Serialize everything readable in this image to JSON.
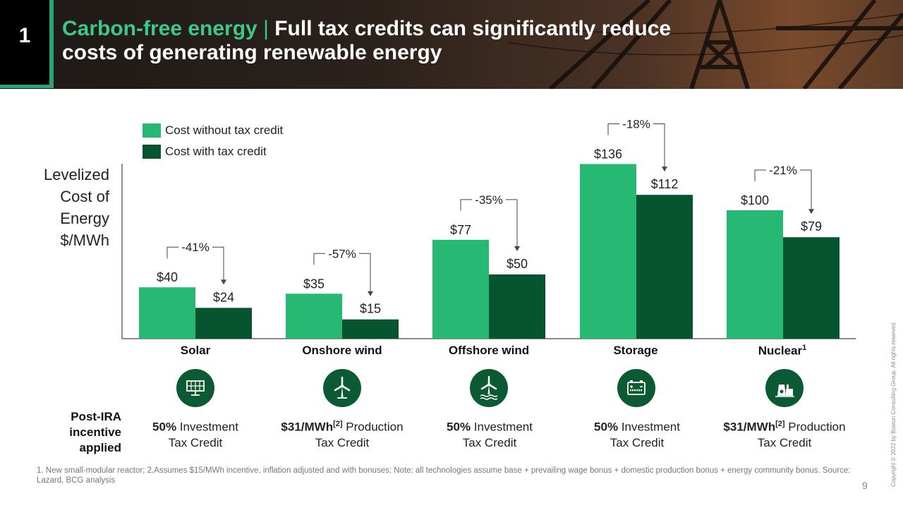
{
  "slide": {
    "number": "1",
    "title_accent": "Carbon-free energy",
    "title_sep": "|",
    "title_main": "Full tax credits can significantly reduce costs of generating renewable energy",
    "page": "9",
    "copyright": "Copyright © 2022 by Boston Consulting Group. All rights reserved.",
    "footnote": "1. New small-modular reactor; 2.Assumes $15/MWh incentive, inflation adjusted and with bonuses; Note: all technologies assume base + prevailing wage bonus + domestic production bonus + energy community bonus. Source: Lazard, BCG analysis",
    "post_ira_label": "Post-IRA incentive applied"
  },
  "chart_data": {
    "type": "bar",
    "ylabel": "Levelized Cost of Energy $/MWh",
    "ylim": [
      0,
      140
    ],
    "categories": [
      "Solar",
      "Onshore wind",
      "Offshore wind",
      "Storage",
      "Nuclear"
    ],
    "category_superscripts": [
      "",
      "",
      "",
      "",
      "1"
    ],
    "series": [
      {
        "name": "Cost without tax credit",
        "values": [
          40,
          35,
          77,
          136,
          100
        ],
        "color": "#27b874"
      },
      {
        "name": "Cost with tax credit",
        "values": [
          24,
          15,
          50,
          112,
          79
        ],
        "color": "#075530"
      }
    ],
    "value_labels_without": [
      "$40",
      "$35",
      "$77",
      "$136",
      "$100"
    ],
    "value_labels_with": [
      "$24",
      "$15",
      "$50",
      "$112",
      "$79"
    ],
    "reductions": [
      "-41%",
      "-57%",
      "-35%",
      "-18%",
      "-21%"
    ],
    "legend_position": "top-left",
    "grid": false
  },
  "incentives": [
    {
      "bold": "50%",
      "sup": "",
      "text": " Investment",
      "line2": "Tax Credit",
      "icon": "solar-panel-icon"
    },
    {
      "bold": "$31/MWh",
      "sup": "[2]",
      "text": " Production",
      "line2": "Tax Credit",
      "icon": "wind-turbine-icon"
    },
    {
      "bold": "50%",
      "sup": "",
      "text": " Investment",
      "line2": "Tax Credit",
      "icon": "offshore-wind-icon"
    },
    {
      "bold": "50%",
      "sup": "",
      "text": " Investment",
      "line2": "Tax Credit",
      "icon": "battery-icon"
    },
    {
      "bold": "$31/MWh",
      "sup": "[2]",
      "text": " Production",
      "line2": "Tax Credit",
      "icon": "nuclear-plant-icon"
    }
  ],
  "colors": {
    "accent": "#2aa37a",
    "light_green": "#27b874",
    "dark_green": "#075530"
  }
}
